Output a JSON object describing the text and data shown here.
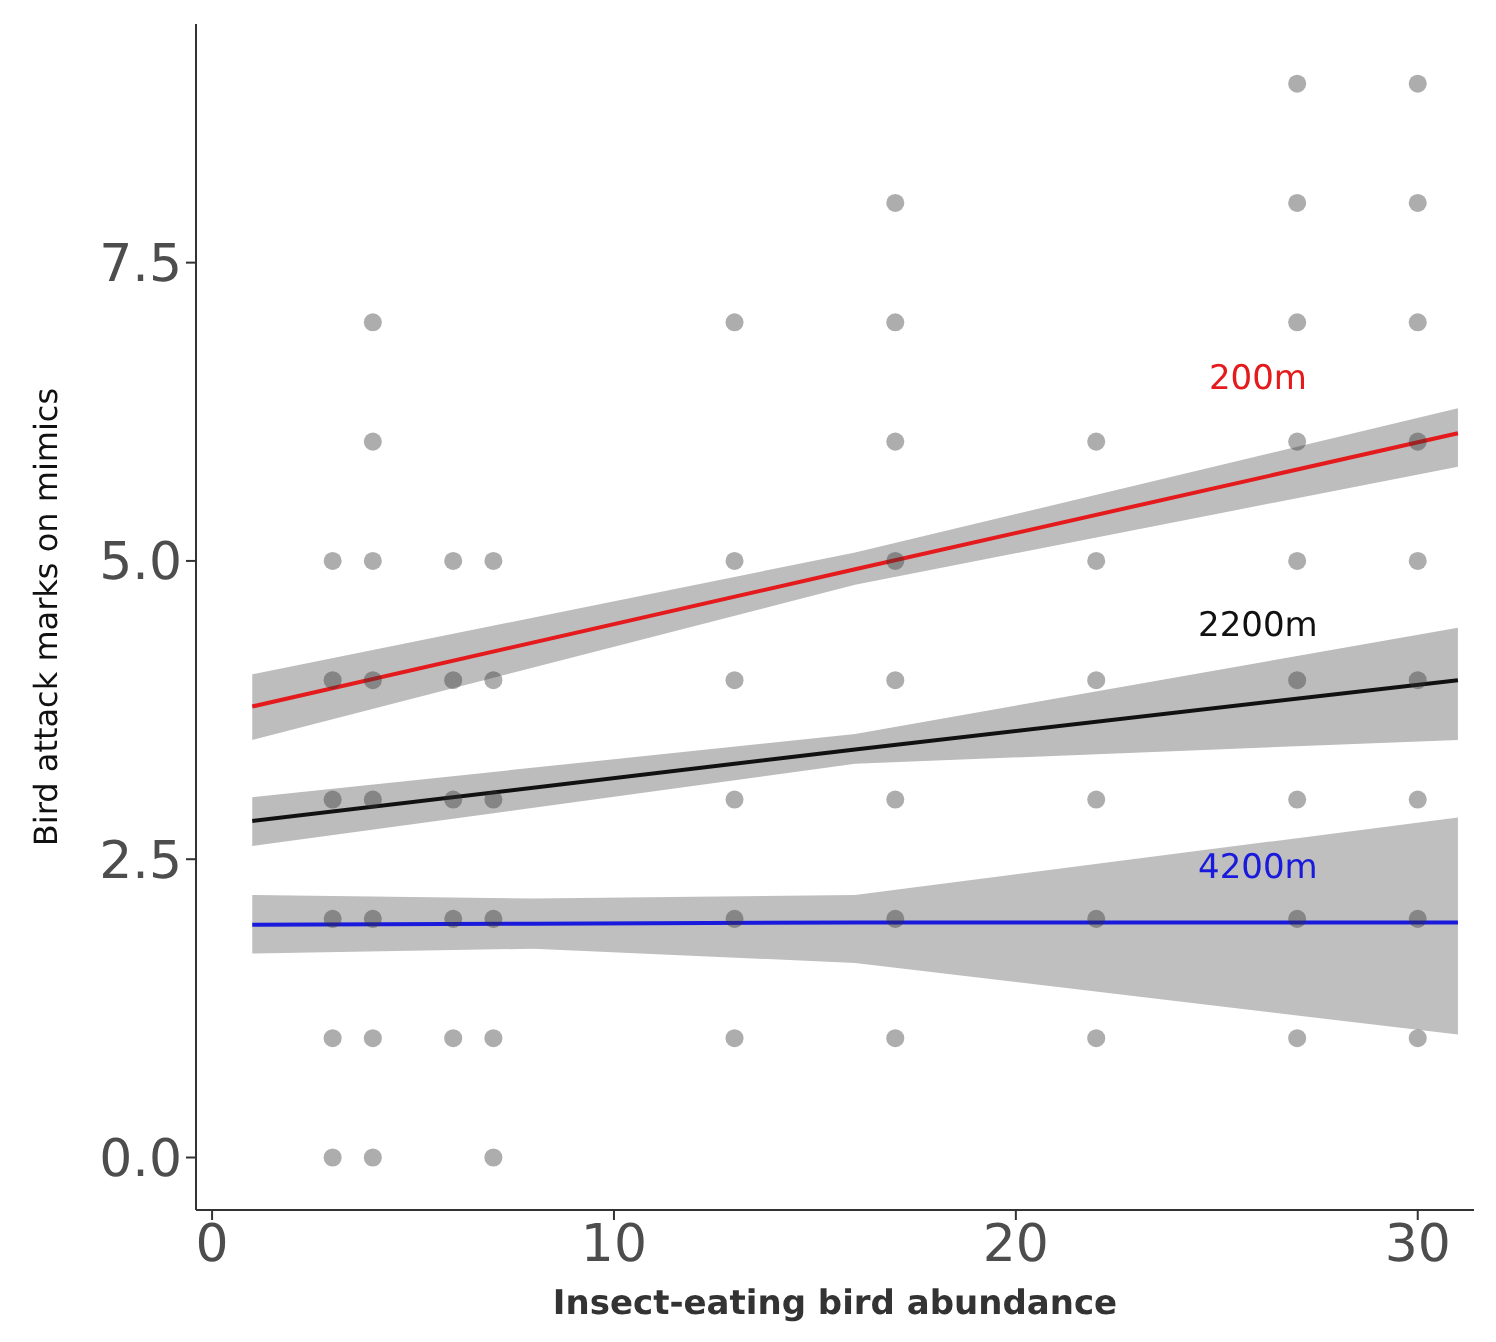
{
  "chart_data": {
    "type": "scatter",
    "xlabel": "Insect-eating bird abundance",
    "ylabel": "Bird attack marks on mimics",
    "xlim": [
      -0.4,
      31.4
    ],
    "xticks": [
      0,
      10,
      20,
      30
    ],
    "ylim": [
      -0.44,
      9.5
    ],
    "yticks": [
      {
        "value": 0,
        "label": "0.0"
      },
      {
        "value": 2.5,
        "label": "2.5"
      },
      {
        "value": 5,
        "label": "5.0"
      },
      {
        "value": 7.5,
        "label": "7.5"
      }
    ],
    "grid": false,
    "legend": false,
    "series": [
      {
        "marker": "circle",
        "color": "#333333",
        "x": [
          3,
          3,
          3,
          3,
          3,
          3,
          4,
          4,
          4,
          4,
          4,
          4,
          4,
          4,
          6,
          6,
          6,
          6,
          6,
          7,
          7,
          7,
          7,
          7,
          7,
          13,
          13,
          13,
          13,
          13,
          13,
          17,
          17,
          17,
          17,
          17,
          17,
          17,
          17,
          22,
          22,
          22,
          22,
          22,
          22,
          27,
          27,
          27,
          27,
          27,
          27,
          27,
          27,
          27,
          30,
          30,
          30,
          30,
          30,
          30,
          30,
          30,
          30
        ],
        "values": [
          0,
          1,
          2,
          3,
          4,
          5,
          0,
          1,
          2,
          3,
          4,
          5,
          6,
          7,
          1,
          2,
          3,
          4,
          5,
          0,
          1,
          2,
          3,
          4,
          5,
          1,
          2,
          3,
          4,
          5,
          7,
          1,
          2,
          3,
          4,
          5,
          6,
          7,
          8,
          1,
          2,
          3,
          4,
          5,
          6,
          1,
          2,
          3,
          4,
          5,
          6,
          7,
          8,
          9,
          1,
          2,
          3,
          4,
          5,
          6,
          7,
          8,
          9
        ]
      },
      {
        "type": "line",
        "name": "200m",
        "color": "#e41a1c",
        "x": [
          1,
          16,
          31
        ],
        "values": [
          3.78,
          4.93,
          6.07
        ],
        "lower": [
          3.5,
          4.8,
          5.79
        ],
        "upper": [
          4.05,
          5.07,
          6.28
        ]
      },
      {
        "type": "line",
        "name": "2200m",
        "color": "#111111",
        "x": [
          1,
          16,
          31
        ],
        "values": [
          2.82,
          3.42,
          4.0
        ],
        "lower": [
          2.61,
          3.3,
          3.5
        ],
        "upper": [
          3.02,
          3.55,
          4.44
        ]
      },
      {
        "type": "line",
        "name": "4200m",
        "color": "#1a1adc",
        "x": [
          1,
          8,
          16,
          31
        ],
        "values": [
          1.95,
          1.96,
          1.97,
          1.97
        ],
        "lower": [
          1.71,
          1.75,
          1.63,
          1.03
        ],
        "upper": [
          2.2,
          2.17,
          2.2,
          2.85
        ]
      }
    ]
  }
}
